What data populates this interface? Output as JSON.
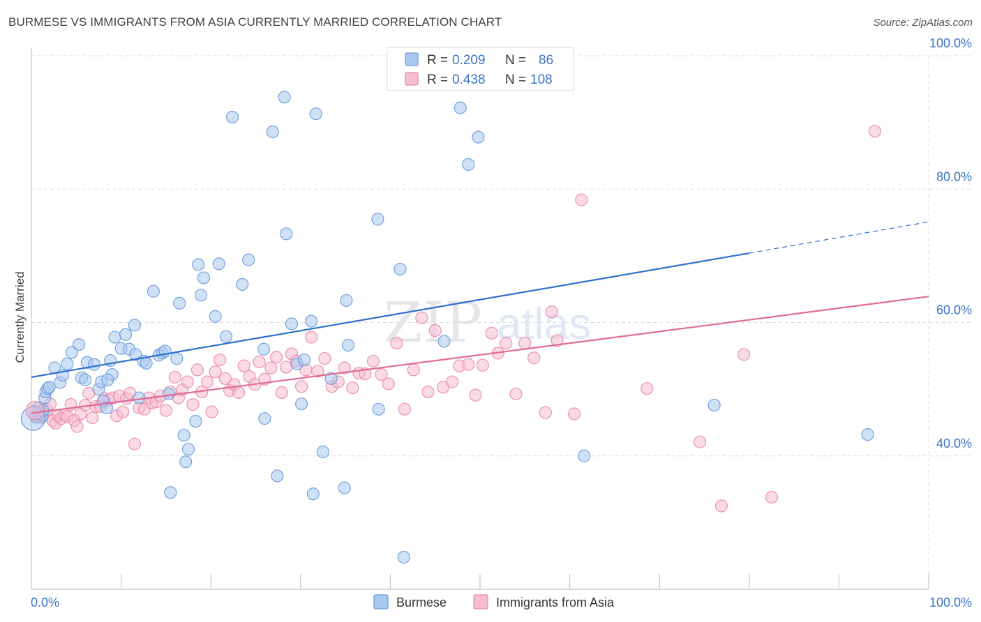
{
  "header": {
    "title": "BURMESE VS IMMIGRANTS FROM ASIA CURRENTLY MARRIED CORRELATION CHART",
    "source": "Source: ZipAtlas.com"
  },
  "watermark": {
    "part1": "ZIP",
    "part2": "atlas"
  },
  "colors": {
    "burmese_fill": "#a9c8ef",
    "burmese_stroke": "#6a9ad8",
    "burmese_line": "#2f6fcc",
    "asia_fill": "#f6bcd0",
    "asia_stroke": "#e888a8",
    "asia_line": "#e06a96",
    "axis_label": "#3b74c4",
    "grid": "#dddddd"
  },
  "legend": {
    "rows": [
      {
        "r_label": "R =",
        "r_value": "0.209",
        "n_label": "N =",
        "n_value": "86"
      },
      {
        "r_label": "R =",
        "r_value": "0.438",
        "n_label": "N =",
        "n_value": "108"
      }
    ]
  },
  "bottom_legend": [
    "Burmese",
    "Immigrants from Asia"
  ],
  "chart_data": {
    "type": "scatter",
    "title": "BURMESE VS IMMIGRANTS FROM ASIA CURRENTLY MARRIED CORRELATION CHART",
    "xlabel": "",
    "ylabel": "Currently Married",
    "xlim": [
      0,
      100
    ],
    "ylim": [
      20,
      100
    ],
    "x_ticks_labeled": [
      "0.0%",
      "100.0%"
    ],
    "y_ticks": [
      {
        "value": 40,
        "label": "40.0%"
      },
      {
        "value": 60,
        "label": "60.0%"
      },
      {
        "value": 80,
        "label": "80.0%"
      },
      {
        "value": 100,
        "label": "100.0%"
      }
    ],
    "grid": true,
    "legend_position": "top-center",
    "series": [
      {
        "name": "Burmese",
        "r": 0.209,
        "n": 86,
        "trend": {
          "x0": 0,
          "y0": 51.8,
          "x1": 80,
          "y1": 70.4,
          "dashed_to_x": 100,
          "dashed_to_y": 75.1
        },
        "points": [
          [
            0.3,
            46.7
          ],
          [
            0.5,
            45.8
          ],
          [
            0.8,
            47.2
          ],
          [
            1.0,
            46.3
          ],
          [
            1.2,
            46.0
          ],
          [
            1.5,
            48.7
          ],
          [
            1.6,
            49.6
          ],
          [
            1.8,
            50.1
          ],
          [
            2.0,
            50.3
          ],
          [
            2.6,
            53.2
          ],
          [
            3.2,
            51.0
          ],
          [
            3.5,
            52.1
          ],
          [
            4.5,
            55.5
          ],
          [
            5.3,
            56.7
          ],
          [
            5.6,
            51.7
          ],
          [
            6.0,
            51.4
          ],
          [
            6.2,
            54.0
          ],
          [
            7.0,
            53.7
          ],
          [
            7.5,
            50.0
          ],
          [
            7.8,
            51.1
          ],
          [
            8.0,
            48.2
          ],
          [
            8.4,
            47.2
          ],
          [
            8.8,
            54.3
          ],
          [
            9.0,
            52.2
          ],
          [
            9.3,
            57.8
          ],
          [
            10.0,
            56.1
          ],
          [
            10.5,
            58.2
          ],
          [
            10.9,
            56.0
          ],
          [
            11.6,
            55.2
          ],
          [
            12.0,
            48.7
          ],
          [
            12.5,
            54.2
          ],
          [
            11.5,
            59.6
          ],
          [
            12.8,
            53.9
          ],
          [
            13.6,
            64.7
          ],
          [
            14.2,
            55.1
          ],
          [
            14.6,
            55.4
          ],
          [
            14.9,
            55.7
          ],
          [
            15.3,
            49.3
          ],
          [
            16.2,
            54.6
          ],
          [
            16.5,
            62.9
          ],
          [
            17.0,
            43.1
          ],
          [
            17.5,
            41.0
          ],
          [
            17.2,
            39.1
          ],
          [
            18.3,
            45.2
          ],
          [
            18.6,
            68.7
          ],
          [
            18.9,
            64.1
          ],
          [
            19.2,
            66.7
          ],
          [
            20.5,
            60.9
          ],
          [
            20.9,
            68.8
          ],
          [
            21.7,
            57.9
          ],
          [
            22.4,
            90.8
          ],
          [
            23.5,
            65.7
          ],
          [
            24.2,
            69.4
          ],
          [
            25.9,
            56.0
          ],
          [
            26.0,
            45.6
          ],
          [
            26.9,
            88.6
          ],
          [
            27.4,
            37.0
          ],
          [
            28.2,
            93.8
          ],
          [
            28.4,
            73.3
          ],
          [
            29.0,
            59.8
          ],
          [
            29.6,
            53.8
          ],
          [
            30.1,
            47.8
          ],
          [
            30.4,
            54.4
          ],
          [
            31.2,
            60.2
          ],
          [
            31.4,
            34.3
          ],
          [
            31.7,
            91.3
          ],
          [
            32.5,
            40.6
          ],
          [
            33.4,
            51.6
          ],
          [
            34.9,
            35.2
          ],
          [
            35.1,
            63.3
          ],
          [
            35.3,
            56.6
          ],
          [
            38.6,
            75.5
          ],
          [
            38.7,
            47.0
          ],
          [
            41.1,
            68.0
          ],
          [
            41.5,
            24.8
          ],
          [
            15.5,
            34.5
          ],
          [
            46.0,
            57.2
          ],
          [
            47.8,
            92.2
          ],
          [
            48.7,
            83.7
          ],
          [
            49.8,
            87.8
          ],
          [
            61.6,
            40.0
          ],
          [
            76.1,
            47.6
          ],
          [
            93.2,
            43.2
          ],
          [
            8.5,
            51.4
          ],
          [
            4.0,
            53.8
          ],
          [
            1.3,
            46.8
          ]
        ]
      },
      {
        "name": "Immigrants from Asia",
        "r": 0.438,
        "n": 108,
        "trend": {
          "x0": 0,
          "y0": 46.4,
          "x1": 100,
          "y1": 63.9
        },
        "points": [
          [
            0.4,
            46.4
          ],
          [
            0.6,
            45.9
          ],
          [
            0.9,
            46.6
          ],
          [
            1.1,
            45.7
          ],
          [
            1.4,
            46.2
          ],
          [
            1.7,
            46.9
          ],
          [
            2.1,
            47.8
          ],
          [
            2.4,
            45.3
          ],
          [
            2.7,
            44.9
          ],
          [
            3.0,
            46.0
          ],
          [
            3.3,
            45.6
          ],
          [
            3.7,
            46.2
          ],
          [
            4.0,
            45.9
          ],
          [
            4.4,
            47.7
          ],
          [
            4.8,
            45.3
          ],
          [
            5.1,
            44.4
          ],
          [
            5.5,
            46.3
          ],
          [
            6.0,
            47.6
          ],
          [
            6.4,
            49.4
          ],
          [
            6.8,
            45.7
          ],
          [
            7.2,
            47.4
          ],
          [
            7.7,
            47.4
          ],
          [
            8.1,
            48.6
          ],
          [
            8.6,
            48.4
          ],
          [
            9.1,
            48.7
          ],
          [
            9.5,
            46.0
          ],
          [
            9.8,
            49.0
          ],
          [
            10.2,
            46.6
          ],
          [
            10.6,
            48.6
          ],
          [
            11.0,
            49.4
          ],
          [
            11.5,
            41.8
          ],
          [
            12.0,
            47.2
          ],
          [
            12.6,
            47.0
          ],
          [
            13.1,
            48.7
          ],
          [
            13.4,
            47.9
          ],
          [
            13.9,
            48.1
          ],
          [
            14.4,
            49.0
          ],
          [
            15.0,
            46.8
          ],
          [
            15.5,
            49.6
          ],
          [
            16.0,
            51.8
          ],
          [
            16.4,
            48.7
          ],
          [
            16.8,
            49.9
          ],
          [
            17.4,
            51.1
          ],
          [
            18.0,
            47.7
          ],
          [
            18.5,
            52.9
          ],
          [
            19.0,
            49.6
          ],
          [
            19.6,
            51.1
          ],
          [
            20.1,
            46.6
          ],
          [
            20.5,
            52.6
          ],
          [
            21.0,
            54.4
          ],
          [
            21.6,
            51.6
          ],
          [
            22.1,
            49.8
          ],
          [
            22.6,
            50.7
          ],
          [
            23.1,
            49.5
          ],
          [
            23.7,
            53.5
          ],
          [
            24.3,
            51.9
          ],
          [
            24.9,
            50.7
          ],
          [
            25.4,
            54.1
          ],
          [
            26.0,
            51.5
          ],
          [
            26.7,
            53.2
          ],
          [
            27.3,
            54.8
          ],
          [
            27.9,
            49.5
          ],
          [
            28.4,
            53.3
          ],
          [
            29.0,
            55.3
          ],
          [
            29.5,
            54.2
          ],
          [
            30.1,
            50.4
          ],
          [
            30.6,
            52.9
          ],
          [
            31.2,
            57.8
          ],
          [
            31.9,
            52.7
          ],
          [
            32.7,
            54.6
          ],
          [
            33.5,
            50.4
          ],
          [
            34.2,
            51.1
          ],
          [
            34.9,
            53.2
          ],
          [
            35.8,
            50.2
          ],
          [
            36.5,
            52.4
          ],
          [
            37.2,
            52.3
          ],
          [
            38.1,
            54.2
          ],
          [
            39.0,
            52.2
          ],
          [
            39.8,
            50.8
          ],
          [
            40.7,
            56.9
          ],
          [
            41.6,
            47.0
          ],
          [
            42.6,
            52.9
          ],
          [
            43.5,
            60.7
          ],
          [
            44.2,
            49.6
          ],
          [
            45.0,
            58.8
          ],
          [
            45.9,
            50.3
          ],
          [
            46.9,
            51.1
          ],
          [
            47.7,
            53.5
          ],
          [
            48.7,
            53.7
          ],
          [
            49.5,
            49.1
          ],
          [
            50.3,
            53.6
          ],
          [
            51.3,
            58.4
          ],
          [
            52.0,
            55.4
          ],
          [
            52.9,
            56.9
          ],
          [
            54.0,
            49.3
          ],
          [
            55.0,
            56.9
          ],
          [
            56.0,
            54.7
          ],
          [
            57.3,
            46.5
          ],
          [
            58.6,
            57.3
          ],
          [
            58.0,
            61.6
          ],
          [
            60.5,
            46.3
          ],
          [
            68.6,
            50.1
          ],
          [
            74.5,
            42.1
          ],
          [
            76.9,
            32.5
          ],
          [
            61.3,
            78.4
          ],
          [
            94.0,
            88.7
          ],
          [
            82.5,
            33.8
          ],
          [
            79.4,
            55.2
          ]
        ]
      }
    ]
  }
}
